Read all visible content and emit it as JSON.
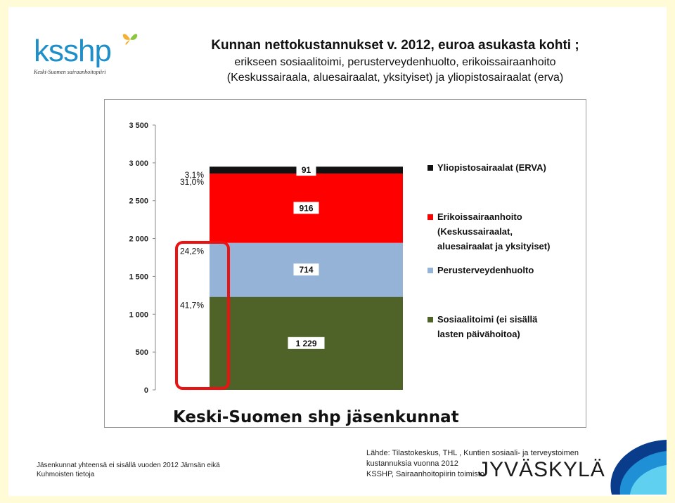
{
  "header": {
    "logo_text": "ksshp",
    "logo_sub": "Keski-Suomen sairaanhoitopiiri",
    "title": "Kunnan nettokustannukset v. 2012, euroa asukasta kohti ;",
    "subtitle_1": "erikseen sosiaalitoimi, perusterveydenhuolto, erikoissairaanhoito",
    "subtitle_2": "(Keskussairaala, aluesairaalat, yksityiset) ja yliopistosairaalat (erva)"
  },
  "chart_data": {
    "type": "bar",
    "stacked": true,
    "categories": [
      "Keski-Suomen shp jäsenkunnat"
    ],
    "series": [
      {
        "name": "Sosiaalitoimi (ei sisällä lasten päivähoitoa)",
        "values": [
          1229
        ],
        "value_label": "1 229",
        "percent_label": "41,7%",
        "color": "#4f6228"
      },
      {
        "name": "Perusterveydenhuolto",
        "values": [
          714
        ],
        "value_label": "714",
        "percent_label": "24,2%",
        "color": "#95b3d7"
      },
      {
        "name": "Erikoissairaanhoito (Keskussairaalat, aluesairaalat ja yksityiset)",
        "values": [
          916
        ],
        "value_label": "916",
        "percent_label": "31,0%",
        "color": "#ff0000"
      },
      {
        "name": "Yliopistosairaalat (ERVA)",
        "values": [
          91
        ],
        "value_label": "91",
        "percent_label": "3,1%",
        "color": "#111111"
      }
    ],
    "ylim": [
      0,
      3500
    ],
    "y_ticks": [
      0,
      500,
      1000,
      1500,
      2000,
      2500,
      3000,
      3500
    ],
    "y_tick_labels": [
      "0",
      "500",
      "1 000",
      "1 500",
      "2 000",
      "2 500",
      "3 000",
      "3 500"
    ],
    "legend": [
      {
        "lines": [
          "Yliopistosairaalat (ERVA)"
        ],
        "color": "#111111"
      },
      {
        "lines": [
          "Erikoissairaanhoito",
          "(Keskussairaalat,",
          "aluesairaalat ja yksityiset)"
        ],
        "color": "#ff0000"
      },
      {
        "lines": [
          "Perusterveydenhuolto"
        ],
        "color": "#95b3d7"
      },
      {
        "lines": [
          "Sosiaalitoimi (ei sisällä",
          "lasten päivähoitoa)"
        ],
        "color": "#4f6228"
      }
    ],
    "legend_position": "right",
    "grid": false,
    "xlabel": "Keski-Suomen shp jäsenkunnat",
    "highlight_color": "#ee1111"
  },
  "footer": {
    "note_1": "Jäsenkunnat yhteensä ei sisällä vuoden 2012 Jämsän eikä",
    "note_2": "Kuhmoisten tietoja",
    "source_1": "Lähde: Tilastokeskus, THL , Kuntien sosiaali- ja terveystoimen",
    "source_2": "kustannuksia vuonna 2012",
    "source_3": "KSSHP, Sairaanhoitopiirin toimisto",
    "city_logo": "JYVÄSKYLÄ"
  }
}
